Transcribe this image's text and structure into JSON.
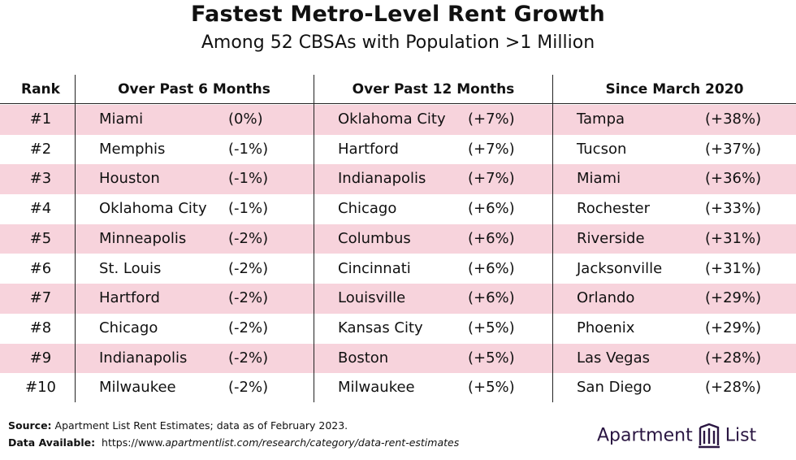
{
  "header": {
    "title": "Fastest Metro-Level Rent Growth",
    "subtitle": "Among 52 CBSAs with Population >1 Million"
  },
  "table": {
    "columns": [
      "Rank",
      "Over Past 6 Months",
      "Over Past 12 Months",
      "Since March 2020"
    ],
    "rows": [
      {
        "rank": "#1",
        "m6_city": "Miami",
        "m6_pct": "(0%)",
        "m12_city": "Oklahoma City",
        "m12_pct": "(+7%)",
        "mar_city": "Tampa",
        "mar_pct": "(+38%)"
      },
      {
        "rank": "#2",
        "m6_city": "Memphis",
        "m6_pct": "(-1%)",
        "m12_city": "Hartford",
        "m12_pct": "(+7%)",
        "mar_city": "Tucson",
        "mar_pct": "(+37%)"
      },
      {
        "rank": "#3",
        "m6_city": "Houston",
        "m6_pct": "(-1%)",
        "m12_city": "Indianapolis",
        "m12_pct": "(+7%)",
        "mar_city": "Miami",
        "mar_pct": "(+36%)"
      },
      {
        "rank": "#4",
        "m6_city": "Oklahoma City",
        "m6_pct": "(-1%)",
        "m12_city": "Chicago",
        "m12_pct": "(+6%)",
        "mar_city": "Rochester",
        "mar_pct": "(+33%)"
      },
      {
        "rank": "#5",
        "m6_city": "Minneapolis",
        "m6_pct": "(-2%)",
        "m12_city": "Columbus",
        "m12_pct": "(+6%)",
        "mar_city": "Riverside",
        "mar_pct": "(+31%)"
      },
      {
        "rank": "#6",
        "m6_city": "St. Louis",
        "m6_pct": "(-2%)",
        "m12_city": "Cincinnati",
        "m12_pct": "(+6%)",
        "mar_city": "Jacksonville",
        "mar_pct": "(+31%)"
      },
      {
        "rank": "#7",
        "m6_city": "Hartford",
        "m6_pct": "(-2%)",
        "m12_city": "Louisville",
        "m12_pct": "(+6%)",
        "mar_city": "Orlando",
        "mar_pct": "(+29%)"
      },
      {
        "rank": "#8",
        "m6_city": "Chicago",
        "m6_pct": "(-2%)",
        "m12_city": "Kansas City",
        "m12_pct": "(+5%)",
        "mar_city": "Phoenix",
        "mar_pct": "(+29%)"
      },
      {
        "rank": "#9",
        "m6_city": "Indianapolis",
        "m6_pct": "(-2%)",
        "m12_city": "Boston",
        "m12_pct": "(+5%)",
        "mar_city": "Las Vegas",
        "mar_pct": "(+28%)"
      },
      {
        "rank": "#10",
        "m6_city": "Milwaukee",
        "m6_pct": "(-2%)",
        "m12_city": "Milwaukee",
        "m12_pct": "(+5%)",
        "mar_city": "San Diego",
        "mar_pct": "(+28%)"
      }
    ]
  },
  "footer": {
    "source_label": "Source:",
    "source_text": " Apartment List Rent Estimates; data as of February 2023.",
    "data_label": "Data Available:",
    "data_url_plain": "  https://www.",
    "data_url_italic": "apartmentlist.com/research/category/data-rent-estimates"
  },
  "logo": {
    "word1": "Apartment",
    "word2": "List",
    "icon": "apartment-list-logo-icon"
  },
  "colors": {
    "row_highlight": "#f7d3dc",
    "text": "#111111",
    "brand": "#2a1642"
  },
  "chart_data": {
    "type": "table",
    "title": "Fastest Metro-Level Rent Growth",
    "subtitle": "Among 52 CBSAs with Population >1 Million",
    "columns": [
      "Rank",
      "Over Past 6 Months",
      "Over Past 12 Months",
      "Since March 2020"
    ],
    "series": [
      {
        "name": "Over Past 6 Months",
        "cities": [
          "Miami",
          "Memphis",
          "Houston",
          "Oklahoma City",
          "Minneapolis",
          "St. Louis",
          "Hartford",
          "Chicago",
          "Indianapolis",
          "Milwaukee"
        ],
        "values": [
          0,
          -1,
          -1,
          -1,
          -2,
          -2,
          -2,
          -2,
          -2,
          -2
        ]
      },
      {
        "name": "Over Past 12 Months",
        "cities": [
          "Oklahoma City",
          "Hartford",
          "Indianapolis",
          "Chicago",
          "Columbus",
          "Cincinnati",
          "Louisville",
          "Kansas City",
          "Boston",
          "Milwaukee"
        ],
        "values": [
          7,
          7,
          7,
          6,
          6,
          6,
          6,
          5,
          5,
          5
        ]
      },
      {
        "name": "Since March 2020",
        "cities": [
          "Tampa",
          "Tucson",
          "Miami",
          "Rochester",
          "Riverside",
          "Jacksonville",
          "Orlando",
          "Phoenix",
          "Las Vegas",
          "San Diego"
        ],
        "values": [
          38,
          37,
          36,
          33,
          31,
          31,
          29,
          29,
          28,
          28
        ]
      }
    ]
  }
}
